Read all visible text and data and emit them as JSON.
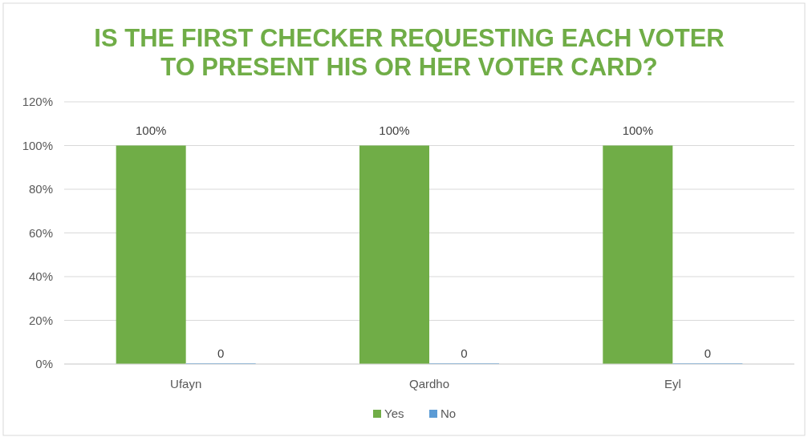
{
  "chart_data": {
    "type": "bar",
    "title": "IS THE FIRST CHECKER REQUESTING EACH VOTER TO PRESENT HIS OR HER VOTER CARD?",
    "categories": [
      "Ufayn",
      "Qardho",
      "Eyl"
    ],
    "series": [
      {
        "name": "Yes",
        "color": "#70ad47",
        "values": [
          100,
          100,
          100
        ],
        "value_labels": [
          "100%",
          "100%",
          "100%"
        ]
      },
      {
        "name": "No",
        "color": "#5b9bd5",
        "values": [
          0,
          0,
          0
        ],
        "value_labels": [
          "0",
          "0",
          "0"
        ]
      }
    ],
    "ylim": [
      0,
      120
    ],
    "yticks": [
      {
        "value": 0,
        "label": "0%"
      },
      {
        "value": 20,
        "label": "20%"
      },
      {
        "value": 40,
        "label": "40%"
      },
      {
        "value": 60,
        "label": "60%"
      },
      {
        "value": 80,
        "label": "80%"
      },
      {
        "value": 100,
        "label": "100%"
      },
      {
        "value": 120,
        "label": "120%"
      }
    ],
    "grid": "y",
    "legend": "bottom"
  }
}
